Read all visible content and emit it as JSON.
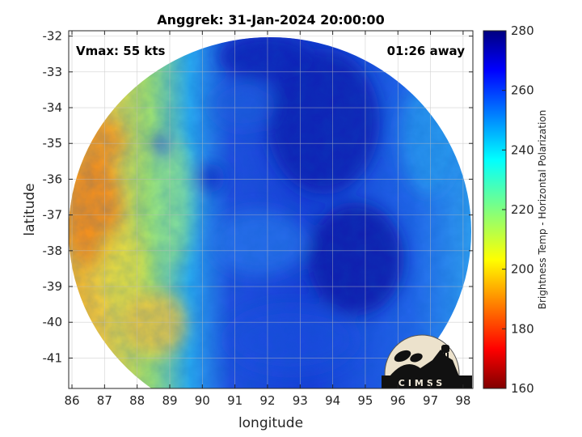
{
  "title": "Anggrek: 31-Jan-2024 20:00:00",
  "vmax_label": "Vmax: 55 kts",
  "away_label": "01:26 away",
  "xlabel": "longitude",
  "ylabel": "latitude",
  "x_ticks": [
    "86",
    "87",
    "88",
    "89",
    "90",
    "91",
    "92",
    "93",
    "94",
    "95",
    "96",
    "97",
    "98"
  ],
  "y_ticks": [
    "-32",
    "-33",
    "-34",
    "-35",
    "-36",
    "-37",
    "-38",
    "-39",
    "-40",
    "-41"
  ],
  "colorbar": {
    "label": "Brightness Temp - Horizontal Polarization",
    "ticks": [
      "280",
      "260",
      "240",
      "220",
      "200",
      "180",
      "160"
    ],
    "range": [
      160,
      280
    ]
  },
  "logo_text": "CIMSS",
  "map": {
    "lon_range": [
      85.9,
      98.3
    ],
    "lat_range": [
      -41.85,
      -31.85
    ],
    "swath_center": [
      92.0,
      -37.0
    ],
    "swath_note_colors": {
      "warm": "#f0a020",
      "cool": "#1030d0",
      "deep": "#00109a"
    }
  }
}
